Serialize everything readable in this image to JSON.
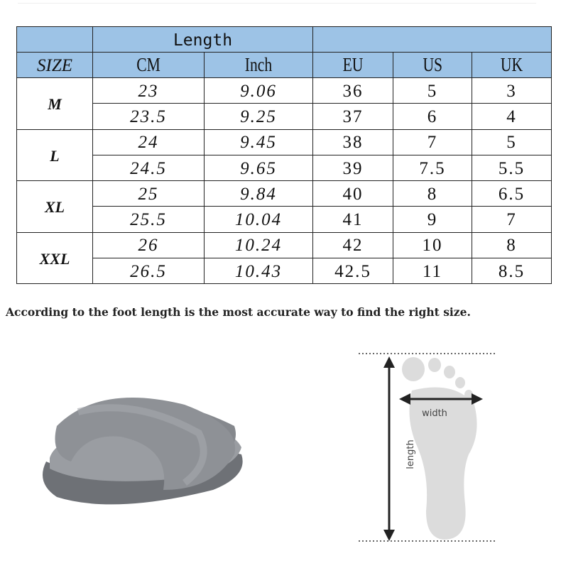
{
  "table": {
    "group_header": "Length",
    "columns": [
      "SIZE",
      "CM",
      "Inch",
      "EU",
      "US",
      "UK"
    ],
    "sizes": [
      {
        "size": "M",
        "rows": [
          {
            "cm": "23",
            "inch": "9.06",
            "eu": "36",
            "us": "5",
            "uk": "3"
          },
          {
            "cm": "23.5",
            "inch": "9.25",
            "eu": "37",
            "us": "6",
            "uk": "4"
          }
        ]
      },
      {
        "size": "L",
        "rows": [
          {
            "cm": "24",
            "inch": "9.45",
            "eu": "38",
            "us": "7",
            "uk": "5"
          },
          {
            "cm": "24.5",
            "inch": "9.65",
            "eu": "39",
            "us": "7.5",
            "uk": "5.5"
          }
        ]
      },
      {
        "size": "XL",
        "rows": [
          {
            "cm": "25",
            "inch": "9.84",
            "eu": "40",
            "us": "8",
            "uk": "6.5"
          },
          {
            "cm": "25.5",
            "inch": "10.04",
            "eu": "41",
            "us": "9",
            "uk": "7"
          }
        ]
      },
      {
        "size": "XXL",
        "rows": [
          {
            "cm": "26",
            "inch": "10.24",
            "eu": "42",
            "us": "10",
            "uk": "8"
          },
          {
            "cm": "26.5",
            "inch": "10.43",
            "eu": "42.5",
            "us": "11",
            "uk": "8.5"
          }
        ]
      }
    ],
    "header_color": "#9dc3e6"
  },
  "note": "According to the foot length is the most  accurate way to find the right size.",
  "diagram": {
    "width_label": "width",
    "length_label": "length"
  },
  "product_color": "#8e9196"
}
